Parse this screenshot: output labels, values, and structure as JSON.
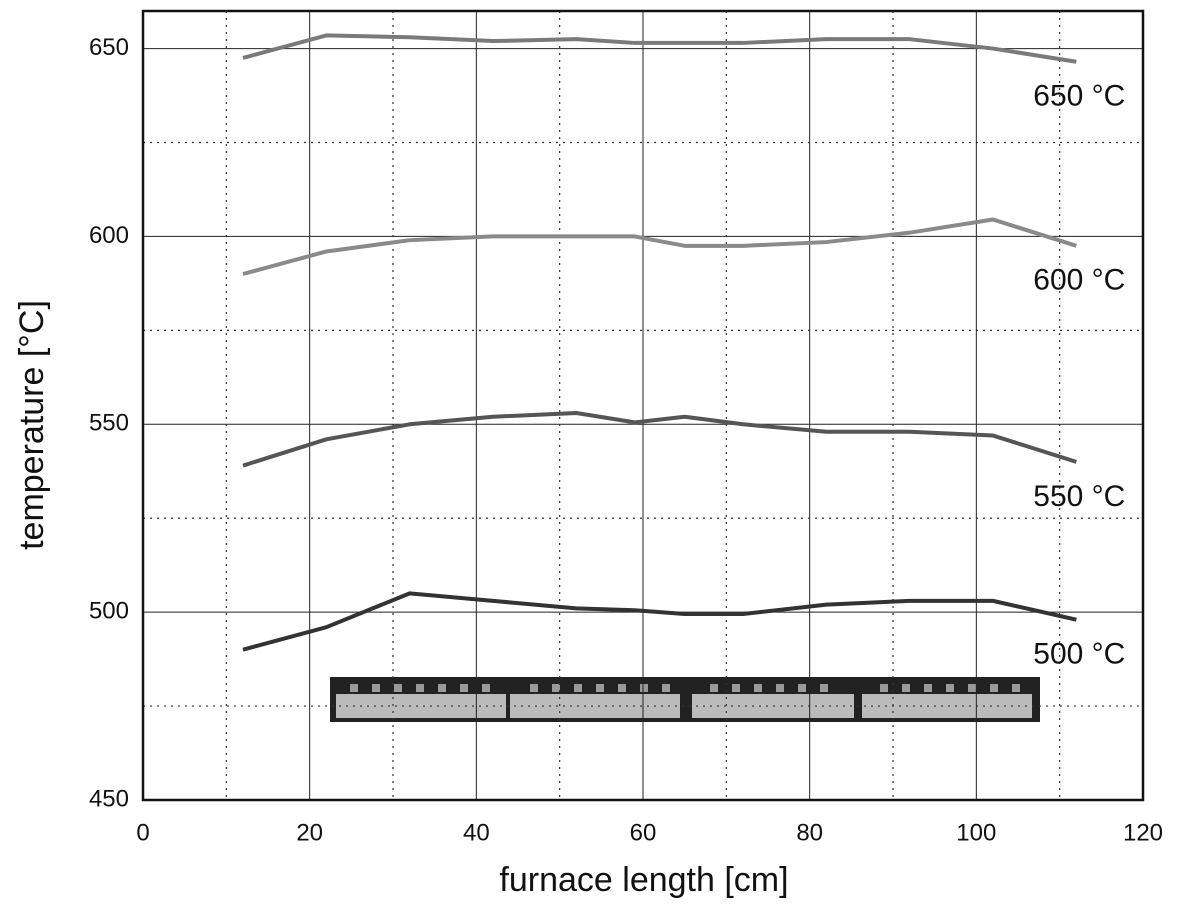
{
  "chart_data": {
    "type": "line",
    "x_label": "furnace length [cm]",
    "y_label": "temperature [°C]",
    "x": [
      12,
      22,
      32,
      42,
      52,
      59,
      65,
      72,
      82,
      92,
      102,
      112
    ],
    "series": [
      {
        "name": "650 °C",
        "color": "#7a7a7a",
        "values": [
          647.5,
          653.5,
          653,
          652,
          652.5,
          651.5,
          651.5,
          651.5,
          652.5,
          652.5,
          650,
          646.5
        ]
      },
      {
        "name": "600 °C",
        "color": "#8a8a8a",
        "values": [
          590,
          596,
          599,
          600,
          600,
          600,
          597.5,
          597.5,
          598.5,
          601,
          604.5,
          597.5
        ]
      },
      {
        "name": "550 °C",
        "color": "#555555",
        "values": [
          539,
          546,
          550,
          552,
          553,
          550.5,
          552,
          550,
          548,
          548,
          547,
          540
        ]
      },
      {
        "name": "500 °C",
        "color": "#333333",
        "values": [
          490,
          496,
          505,
          503,
          501,
          500.5,
          499.5,
          499.5,
          502,
          503,
          503,
          498
        ]
      }
    ],
    "xlim": [
      0,
      120
    ],
    "xticks": [
      0,
      20,
      40,
      60,
      80,
      100,
      120
    ],
    "xminorticks": [
      10,
      30,
      50,
      70,
      90,
      110
    ],
    "ylim": [
      450,
      660
    ],
    "yticks": [
      450,
      500,
      550,
      600,
      650
    ],
    "yminorticks": [
      475,
      525,
      575,
      625
    ],
    "grid": true
  }
}
